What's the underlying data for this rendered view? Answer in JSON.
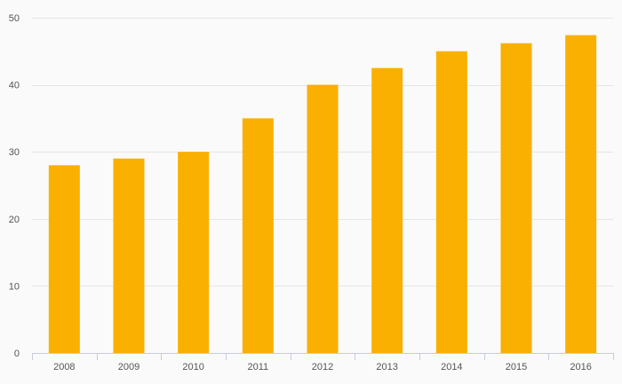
{
  "chart_data": {
    "type": "bar",
    "title": "",
    "xlabel": "",
    "ylabel": "",
    "categories": [
      "2008",
      "2009",
      "2010",
      "2011",
      "2012",
      "2013",
      "2014",
      "2015",
      "2016"
    ],
    "series": [
      {
        "values": [
          28,
          29,
          30,
          35,
          40,
          42.5,
          45,
          46.2,
          47.4
        ]
      }
    ],
    "ylim": [
      0,
      50
    ],
    "yticks": [
      0,
      10,
      20,
      30,
      40,
      50
    ],
    "grid": true,
    "legend": "none"
  },
  "colors": {
    "bar": "#f9b000",
    "gridline": "#e6e6e6",
    "axis": "#c8cbe0",
    "tick_text": "#555555",
    "background": "#fafafa"
  }
}
